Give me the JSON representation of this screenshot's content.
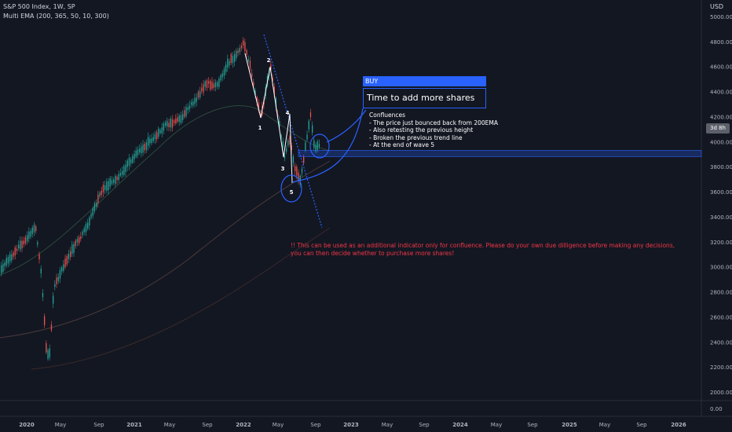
{
  "header": {
    "symbol": "S&P 500 Index, 1W, SP",
    "indicator": "Multi EMA (200, 365, 50, 10, 300)",
    "currency": "USD"
  },
  "price_tag": "3d 8h",
  "annotations": {
    "buy_label": "BUY",
    "buy_text": "Time to add more shares",
    "confluences": "Confluences\n- The price just bounced back from 200EMA\n- Also retesting the previous height\n- Broken the previous trend line\n- At the end of wave 5",
    "warning": "!! This can be used as an additional indicator only for confluence. Please do your own due dilligence before making any decisions,\nyou can then decide whether to purchase more shares!",
    "waves": [
      "1",
      "2",
      "3",
      "4",
      "5"
    ]
  },
  "colors": {
    "background": "#131722",
    "up": "#26a69a",
    "down": "#ef5350",
    "accent": "#2962ff",
    "warning": "#f23645"
  },
  "chart_data": {
    "type": "candlestick",
    "title": "S&P 500 Index, 1W, SP",
    "x_ticks": [
      "2020",
      "May",
      "Sep",
      "2021",
      "May",
      "Sep",
      "2022",
      "May",
      "Sep",
      "2023",
      "May",
      "Sep",
      "2024",
      "May",
      "Sep",
      "2025",
      "May",
      "Sep",
      "2026"
    ],
    "y_ticks": [
      "5000.00",
      "4800.00",
      "4600.00",
      "4400.00",
      "4200.00",
      "4000.00",
      "3800.00",
      "3600.00",
      "3400.00",
      "3200.00",
      "3000.00",
      "2800.00",
      "2600.00",
      "2400.00",
      "2200.00",
      "2000.00"
    ],
    "sub_pane_y_tick": "0.00",
    "ylim": [
      1950,
      5050
    ],
    "price_path": [
      [
        "2020",
        3230
      ],
      [
        "May",
        2950
      ],
      [
        "Sep",
        3400
      ],
      [
        "2021",
        3750
      ],
      [
        "May",
        4200
      ],
      [
        "Sep",
        4450
      ],
      [
        "2022",
        4750
      ],
      [
        "May",
        4100
      ],
      [
        "Sep",
        3900
      ]
    ],
    "ema_200_approx": [
      [
        "2020",
        2500
      ],
      [
        "2021",
        2750
      ],
      [
        "2022",
        3200
      ],
      [
        "Sep",
        3700
      ]
    ],
    "resistance_zone": [
      3880,
      3930
    ]
  }
}
